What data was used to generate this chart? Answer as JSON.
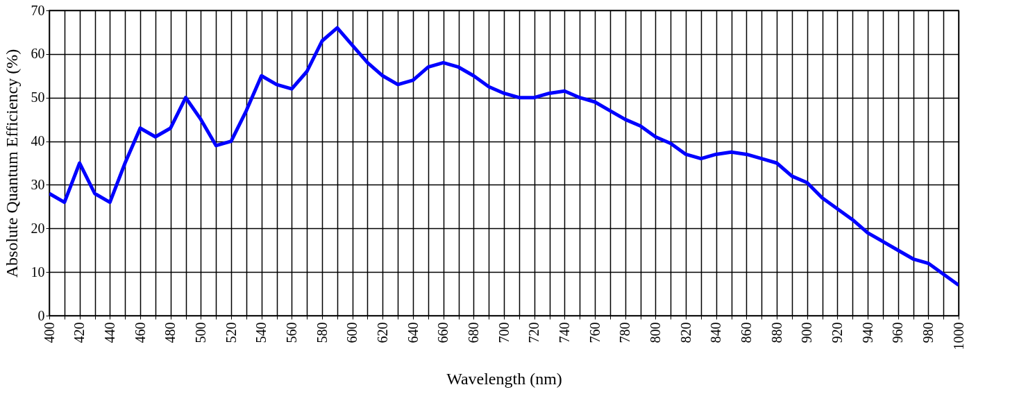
{
  "chart_data": {
    "type": "line",
    "xlabel": "Wavelength (nm)",
    "ylabel": "Absolute Quantum Efficiency (%)",
    "x": [
      400,
      410,
      420,
      430,
      440,
      450,
      460,
      470,
      480,
      490,
      500,
      510,
      520,
      530,
      540,
      550,
      560,
      570,
      580,
      590,
      600,
      610,
      620,
      630,
      640,
      650,
      660,
      670,
      680,
      690,
      700,
      710,
      720,
      730,
      740,
      750,
      760,
      770,
      780,
      790,
      800,
      810,
      820,
      830,
      840,
      850,
      860,
      870,
      880,
      890,
      900,
      910,
      920,
      930,
      940,
      950,
      960,
      970,
      980,
      990,
      1000
    ],
    "series": [
      {
        "color": "#0000ff",
        "values": [
          28,
          26,
          35,
          28,
          26,
          35,
          43,
          41,
          43,
          50,
          45,
          39,
          40,
          47,
          55,
          53,
          52,
          56,
          63,
          66,
          62,
          58,
          55,
          53,
          54,
          57,
          58,
          57,
          55,
          52.5,
          51,
          50,
          50,
          51,
          51.5,
          50,
          49,
          47,
          45,
          43.5,
          41,
          39.5,
          37,
          36,
          37,
          37.5,
          37,
          36,
          35,
          32,
          30.5,
          27,
          24.5,
          22,
          19,
          17,
          15,
          13,
          12,
          9.5,
          7
        ]
      }
    ],
    "xlim": [
      400,
      1000
    ],
    "ylim": [
      0,
      70
    ],
    "xticks": [
      400,
      {
        "value": 410,
        "label": null
      },
      420,
      {
        "value": 430,
        "label": null
      },
      440,
      {
        "value": 450,
        "label": null
      },
      460,
      {
        "value": 470,
        "label": null
      },
      480,
      {
        "value": 490,
        "label": null
      },
      500,
      {
        "value": 510,
        "label": null
      },
      520,
      {
        "value": 530,
        "label": null
      },
      540,
      {
        "value": 550,
        "label": null
      },
      560,
      {
        "value": 570,
        "label": null
      },
      580,
      {
        "value": 590,
        "label": null
      },
      600,
      {
        "value": 610,
        "label": null
      },
      620,
      {
        "value": 630,
        "label": null
      },
      640,
      {
        "value": 650,
        "label": null
      },
      660,
      {
        "value": 670,
        "label": null
      },
      680,
      {
        "value": 690,
        "label": null
      },
      700,
      {
        "value": 710,
        "label": null
      },
      720,
      {
        "value": 730,
        "label": null
      },
      740,
      {
        "value": 750,
        "label": null
      },
      760,
      {
        "value": 770,
        "label": null
      },
      780,
      {
        "value": 790,
        "label": null
      },
      800,
      {
        "value": 810,
        "label": null
      },
      820,
      {
        "value": 830,
        "label": null
      },
      840,
      {
        "value": 850,
        "label": null
      },
      860,
      {
        "value": 870,
        "label": null
      },
      880,
      {
        "value": 890,
        "label": null
      },
      900,
      {
        "value": 910,
        "label": null
      },
      920,
      {
        "value": 930,
        "label": null
      },
      940,
      {
        "value": 950,
        "label": null
      },
      960,
      {
        "value": 970,
        "label": null
      },
      980,
      {
        "value": 990,
        "label": null
      },
      1000
    ],
    "yticks": [
      0,
      10,
      20,
      30,
      40,
      50,
      60,
      70
    ],
    "grid": true,
    "marker": "none",
    "line_style": "solid"
  }
}
